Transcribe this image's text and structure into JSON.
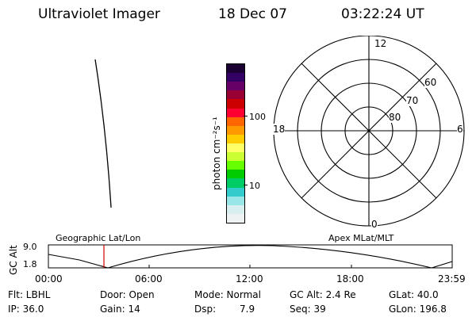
{
  "header": {
    "instrument": "Ultraviolet Imager",
    "date": "18 Dec 07",
    "time": "03:22:24 UT"
  },
  "colorbar": {
    "label": "photon cm⁻²s⁻¹",
    "ticks": [
      "100",
      "10"
    ],
    "colors": [
      "#1a0033",
      "#330066",
      "#660066",
      "#990033",
      "#cc0000",
      "#ff0033",
      "#ff6600",
      "#ff9900",
      "#ffcc00",
      "#ffff66",
      "#ccff33",
      "#66ff00",
      "#00cc00",
      "#00cc66",
      "#33cccc",
      "#99e6e6",
      "#d9eeee",
      "#eef2f2"
    ]
  },
  "polar": {
    "labels": {
      "noon": "12",
      "midnight": "0",
      "dusk": "18",
      "dawn": "6",
      "lat60": "60",
      "lat70": "70",
      "lat80": "80"
    }
  },
  "timeline": {
    "ylabel": "GC Alt",
    "ymax": "9.0",
    "ymin": "1.8",
    "left_title": "Geographic Lat/Lon",
    "right_title": "Apex MLat/MLT",
    "xticks": [
      "00:00",
      "06:00",
      "12:00",
      "18:00",
      "23:59"
    ],
    "marker_color": "#cc0000"
  },
  "status": {
    "filter": "Flt: LBHL",
    "ip": "IP: 36.0",
    "door": "Door: Open",
    "gain": "Gain: 14",
    "mode": "Mode: Normal",
    "dsp_label": "Dsp:",
    "dsp_value": "7.9",
    "gc_alt": "GC Alt: 2.4 Re",
    "seq": "Seq: 39",
    "glat": "GLat: 40.0",
    "glon": "GLon: 196.8"
  }
}
